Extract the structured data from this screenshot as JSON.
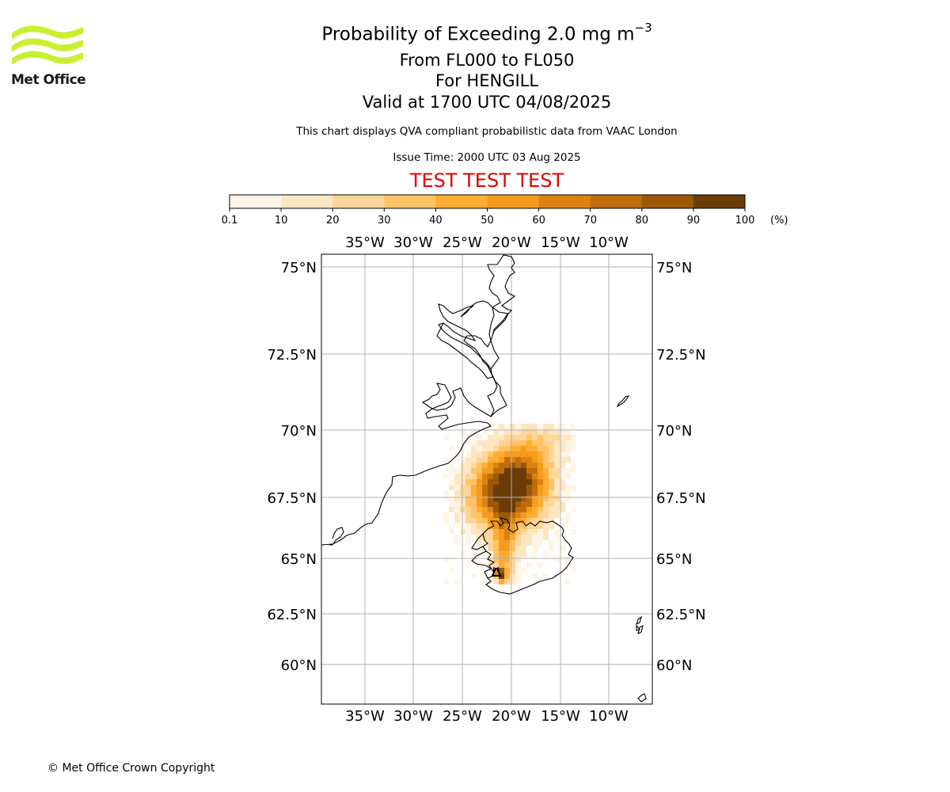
{
  "logo": {
    "text": "Met Office",
    "color": "#c8f030"
  },
  "header": {
    "title_prefix": "Probability of Exceeding 2.0 mg m",
    "title_superscript": "−3",
    "levels": "From FL000 to FL050",
    "volcano": "For HENGILL",
    "valid": "Valid at 1700 UTC 04/08/2025",
    "description": "This chart displays QVA compliant probabilistic data from VAAC London",
    "issue_time": "Issue Time: 2000 UTC 03 Aug 2025",
    "test_banner": "TEST TEST TEST"
  },
  "colorbar": {
    "ticks": [
      "0.1",
      "10",
      "20",
      "30",
      "40",
      "50",
      "60",
      "70",
      "80",
      "90",
      "100"
    ],
    "unit": "(%)",
    "colors": [
      "#fff5e6",
      "#ffe6c2",
      "#ffd699",
      "#ffc366",
      "#ffad33",
      "#f59b1c",
      "#dc8210",
      "#bf6d0a",
      "#9c5707",
      "#6b3c08"
    ]
  },
  "map": {
    "lon_ticks": [
      "35°W",
      "30°W",
      "25°W",
      "20°W",
      "15°W",
      "10°W"
    ],
    "lat_ticks": [
      "75°N",
      "72.5°N",
      "70°N",
      "67.5°N",
      "65°N",
      "62.5°N",
      "60°N"
    ],
    "coast_color": "#000000",
    "grid_color": "#b0b0b0",
    "volcano_marker": "triangle-icon"
  },
  "footer": {
    "copyright": "© Met Office Crown Copyright"
  }
}
